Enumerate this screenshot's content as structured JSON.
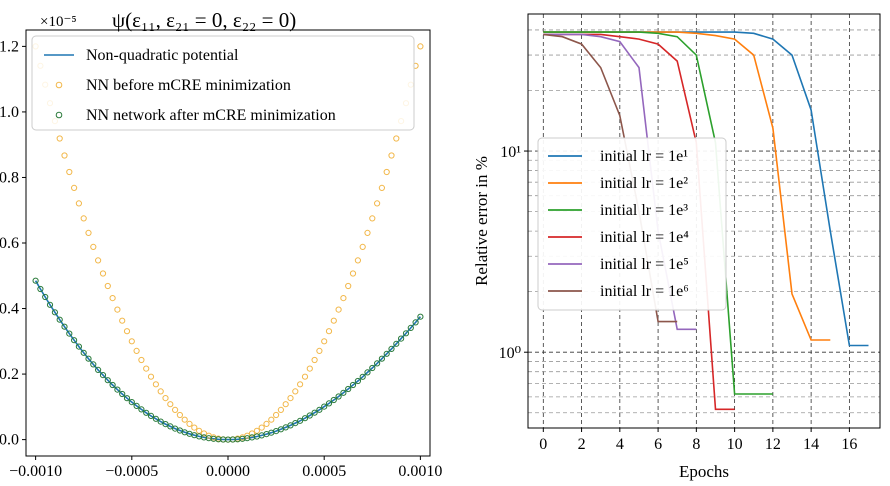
{
  "chart_data": [
    {
      "type": "scatter",
      "title": "ψ(ε₁₁, ε₂₁ = 0, ε₂₂ = 0)",
      "scale_label": "×10⁻⁵",
      "xlim": [
        -0.00105,
        0.00105
      ],
      "ylim": [
        -0.05,
        1.25
      ],
      "y_unit_factor": 1e-05,
      "grid": false,
      "legend_position": "upper-left",
      "x_tick_labels": [
        "−0.0010",
        "−0.0005",
        "0.0000",
        "0.0005",
        "0.0010"
      ],
      "x_ticks": [
        -0.001,
        -0.0005,
        0,
        0.0005,
        0.001
      ],
      "y_tick_labels": [
        "0.0",
        "0.2",
        "0.4",
        "0.6",
        "0.8",
        "1.0",
        "1.2"
      ],
      "y_ticks": [
        0,
        0.2,
        0.4,
        0.6,
        0.8,
        1.0,
        1.2
      ],
      "x_range_points": [
        -0.001,
        0.001,
        81
      ],
      "series": [
        {
          "name": "Non-quadratic potential",
          "kind": "line",
          "color": "#1f77b4",
          "coefficients": {
            "a2": 430000.0,
            "a3": -55000000.0
          }
        },
        {
          "name": "NN before mCRE minimization",
          "kind": "markers",
          "color": "#f2b84b",
          "coefficients": {
            "a2": 1200000.0,
            "a3": 0
          }
        },
        {
          "name": "NN network after mCRE minimization",
          "kind": "markers",
          "color": "#2a7a3a",
          "coefficients": {
            "a2": 430000.0,
            "a3": -55000000.0
          }
        }
      ]
    },
    {
      "type": "line",
      "xlabel": "Epochs",
      "ylabel": "Relative error in %",
      "yscale": "log",
      "xlim": [
        -0.8,
        17.6
      ],
      "ylim": [
        0.42,
        48
      ],
      "grid": true,
      "legend_position": "center-left",
      "x_tick_labels": [
        "0",
        "2",
        "4",
        "6",
        "8",
        "10",
        "12",
        "14",
        "16"
      ],
      "x_ticks": [
        0,
        2,
        4,
        6,
        8,
        10,
        12,
        14,
        16
      ],
      "y_tick_labels": [
        "10⁰",
        "10¹"
      ],
      "y_ticks": [
        1,
        10
      ],
      "series": [
        {
          "name": "initial lr = 1e¹",
          "color": "#1f77b4",
          "x": [
            0,
            1,
            2,
            3,
            4,
            5,
            6,
            7,
            8,
            9,
            10,
            11,
            12,
            13,
            14,
            15,
            16,
            17
          ],
          "y": [
            39,
            39,
            39,
            39,
            39,
            39,
            39,
            39,
            39,
            39,
            39,
            38.5,
            36,
            30,
            16,
            4,
            1.08,
            1.08
          ]
        },
        {
          "name": "initial lr = 1e²",
          "color": "#ff7f0e",
          "x": [
            0,
            1,
            2,
            3,
            4,
            5,
            6,
            7,
            8,
            9,
            10,
            11,
            12,
            13,
            14,
            15
          ],
          "y": [
            39,
            39,
            39,
            39,
            39,
            39,
            39,
            39,
            38.5,
            37.5,
            36,
            30,
            13,
            1.95,
            1.15,
            1.15
          ]
        },
        {
          "name": "initial lr = 1e³",
          "color": "#2ca02c",
          "x": [
            0,
            1,
            2,
            3,
            4,
            5,
            6,
            7,
            8,
            9,
            10,
            11,
            12
          ],
          "y": [
            39,
            39,
            39,
            39,
            39,
            39,
            38.5,
            37,
            30,
            11,
            0.62,
            0.62,
            0.62
          ]
        },
        {
          "name": "initial lr = 1e⁴",
          "color": "#d62728",
          "x": [
            0,
            1,
            2,
            3,
            4,
            5,
            6,
            7,
            8,
            9,
            10
          ],
          "y": [
            38,
            38,
            38,
            38,
            37,
            36,
            34,
            28,
            11,
            0.52,
            0.52
          ]
        },
        {
          "name": "initial lr = 1e⁵",
          "color": "#9467bd",
          "x": [
            0,
            1,
            2,
            3,
            4,
            5,
            6,
            7,
            8
          ],
          "y": [
            38,
            38,
            38,
            37,
            35,
            26,
            4,
            1.3,
            1.3
          ]
        },
        {
          "name": "initial lr = 1e⁶",
          "color": "#8c564b",
          "x": [
            0,
            1,
            2,
            3,
            4,
            5,
            6,
            7
          ],
          "y": [
            38,
            37,
            34,
            26,
            15,
            5,
            1.42,
            1.42
          ]
        }
      ]
    }
  ]
}
